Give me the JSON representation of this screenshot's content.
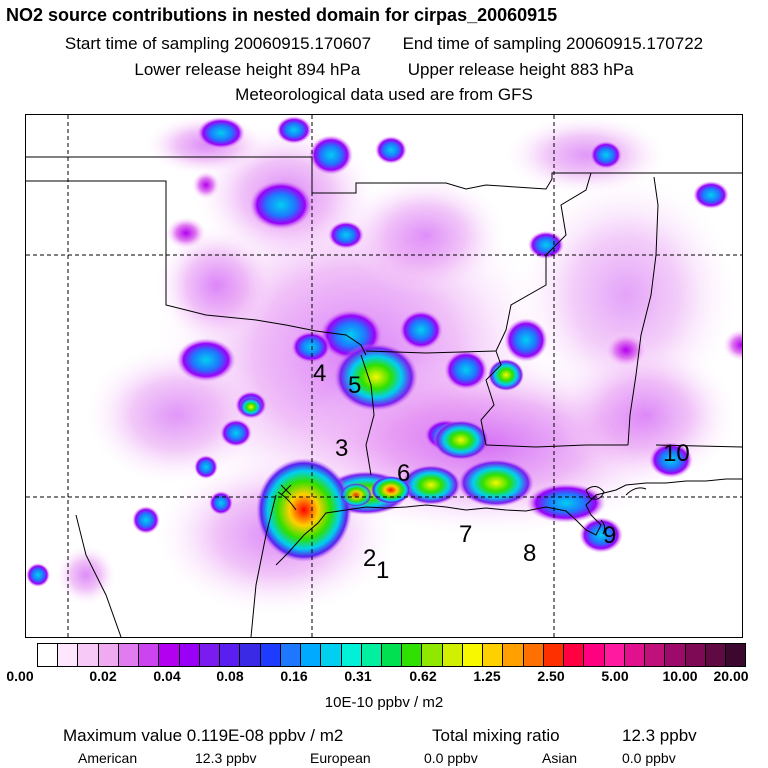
{
  "header": {
    "title": "NO2 source contributions in nested domain for cirpas_20060915",
    "start_time": "Start time of sampling 20060915.170607",
    "end_time": "End time of sampling 20060915.170722",
    "lower_release": "Lower release height  894 hPa",
    "upper_release": "Upper release height  883 hPa",
    "met_data": "Meteorological data used are from GFS"
  },
  "map": {
    "site_labels": [
      "1",
      "2",
      "3",
      "4",
      "5",
      "6",
      "7",
      "8",
      "9",
      "10"
    ]
  },
  "colorbar": {
    "tick_labels": [
      "0.00",
      "0.02",
      "0.04",
      "0.08",
      "0.16",
      "0.31",
      "0.62",
      "1.25",
      "2.50",
      "5.00",
      "10.00",
      "20.00"
    ],
    "colors": [
      "#ffffff",
      "#ffe6ff",
      "#f7c9f7",
      "#f0aaf0",
      "#e07cf0",
      "#cc44f0",
      "#b400f0",
      "#9a00f8",
      "#7a1cf0",
      "#5a1ef0",
      "#3a2ae6",
      "#1e3cff",
      "#1e78ff",
      "#00aaff",
      "#00d0f0",
      "#00f0d8",
      "#00f0a0",
      "#00e050",
      "#30e000",
      "#90e800",
      "#d0f000",
      "#f8f800",
      "#ffd000",
      "#ffa000",
      "#ff7000",
      "#ff3000",
      "#ff0040",
      "#ff0080",
      "#ff1aa0",
      "#e0108e",
      "#c0107a",
      "#9e0a6a",
      "#7e0a56",
      "#600a44",
      "#3c0830"
    ],
    "units": "10E-10 ppbv / m2"
  },
  "stats": {
    "max_label": "Maximum value  0.119E-08 ppbv / m2",
    "total_label": "Total mixing ratio",
    "total_value": "12.3 ppbv",
    "american_label": "American",
    "american_value": "12.3 ppbv",
    "european_label": "European",
    "european_value": "0.0 ppbv",
    "asian_label": "Asian",
    "asian_value": "0.0 ppbv"
  }
}
